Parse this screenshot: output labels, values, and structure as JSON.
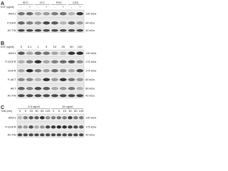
{
  "panels": [
    {
      "letter": "A",
      "groups": [
        "SFC",
        "LTC",
        "PSC",
        "CSC"
      ],
      "lane_title": "EGF (ng/ml)",
      "lanes": [
        "-",
        "+",
        "-",
        "+",
        "-",
        "+",
        "-",
        "+"
      ],
      "rows": [
        {
          "label": "ANO1",
          "marker": "130 kDa"
        },
        {
          "label": "P-ERK",
          "marker": "44 kDa"
        },
        {
          "label": "ACTIN",
          "marker": "42 kDa"
        }
      ]
    },
    {
      "letter": "B",
      "groups": [],
      "lane_title": "EGF (ng/ml)",
      "lanes": [
        "0",
        "0.1",
        "1",
        "5",
        "10",
        "25",
        "50",
        "100"
      ],
      "rows": [
        {
          "label": "ANO1",
          "marker": "130 kDa"
        },
        {
          "label": "P-EGFR",
          "marker": "175 kDa"
        },
        {
          "label": "EGFR",
          "marker": "175 kDa"
        },
        {
          "label": "P-AKT",
          "marker": "60 kDa"
        },
        {
          "label": "AKT",
          "marker": "60 kDa"
        },
        {
          "label": "ACTIN",
          "marker": "42 kDa"
        }
      ]
    },
    {
      "letter": "C",
      "groups": [
        "0.5 ng/ml",
        "10 ng/ml"
      ],
      "lane_title": "Time (min)",
      "lanes": [
        "0",
        "5",
        "15",
        "30",
        "60",
        "120",
        "0",
        "5",
        "15",
        "30",
        "60",
        "120"
      ],
      "rows": [
        {
          "label": "ANO1",
          "marker": "130 kDa"
        },
        {
          "label": "P-EGFR",
          "marker": "175 kDa"
        },
        {
          "label": "ACTIN",
          "marker": "42 kDa"
        }
      ]
    }
  ]
}
